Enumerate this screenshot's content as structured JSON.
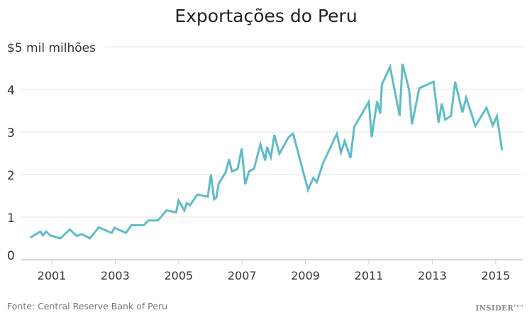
{
  "chart_data": {
    "type": "line",
    "title": "Exportações do Peru",
    "ylabel": "$5 mil milhões",
    "xlabel": "",
    "source": "Fonte: Central Reserve Bank of Peru",
    "logo": "INSIDER PRO",
    "line_color": "#5fbcc6",
    "grid": true,
    "xlim": [
      2000.0,
      2015.6
    ],
    "ylim": [
      0,
      5
    ],
    "x_ticks": [
      2001,
      2003,
      2005,
      2007,
      2009,
      2011,
      2013,
      2015
    ],
    "x_tick_labels": [
      "2001",
      "2003",
      "2005",
      "2007",
      "2009",
      "2011",
      "2013",
      "2015"
    ],
    "y_ticks": [
      0,
      1,
      2,
      3,
      4,
      5
    ],
    "y_tick_labels": [
      "0",
      "1",
      "2",
      "3",
      "4",
      "$5 mil milhões"
    ],
    "series": [
      {
        "x": [
          2000.32,
          2000.64,
          2000.72,
          2000.82,
          2000.95,
          2001.27,
          2001.57,
          2001.78,
          2001.96,
          2002.2,
          2002.48,
          2002.89,
          2002.98,
          2003.34,
          2003.51,
          2003.91,
          2004.04,
          2004.35,
          2004.62,
          2004.92,
          2005.0,
          2005.18,
          2005.26,
          2005.36,
          2005.59,
          2005.92,
          2006.02,
          2006.12,
          2006.19,
          2006.26,
          2006.49,
          2006.59,
          2006.68,
          2006.86,
          2006.99,
          2007.1,
          2007.22,
          2007.38,
          2007.58,
          2007.73,
          2007.79,
          2007.91,
          2008.02,
          2008.18,
          2008.47,
          2008.61,
          2009.08,
          2009.25,
          2009.36,
          2009.55,
          2009.99,
          2010.12,
          2010.24,
          2010.42,
          2010.54,
          2011.0,
          2011.09,
          2011.26,
          2011.36,
          2011.41,
          2011.67,
          2011.97,
          2012.06,
          2012.27,
          2012.36,
          2012.59,
          2013.04,
          2013.2,
          2013.3,
          2013.41,
          2013.59,
          2013.72,
          2013.95,
          2014.07,
          2014.36,
          2014.71,
          2014.91,
          2015.04,
          2015.2
        ],
        "y": [
          0.52,
          0.66,
          0.57,
          0.66,
          0.57,
          0.5,
          0.71,
          0.56,
          0.6,
          0.5,
          0.76,
          0.63,
          0.75,
          0.63,
          0.81,
          0.81,
          0.92,
          0.92,
          1.16,
          1.11,
          1.39,
          1.16,
          1.33,
          1.28,
          1.53,
          1.48,
          2.0,
          1.42,
          1.46,
          1.78,
          2.06,
          2.36,
          2.07,
          2.13,
          2.61,
          1.77,
          2.07,
          2.14,
          2.71,
          2.33,
          2.65,
          2.41,
          2.93,
          2.49,
          2.88,
          2.96,
          1.64,
          1.92,
          1.82,
          2.26,
          2.96,
          2.52,
          2.79,
          2.39,
          3.12,
          3.71,
          2.88,
          3.72,
          3.43,
          4.11,
          4.53,
          3.38,
          4.6,
          3.99,
          3.18,
          4.03,
          4.18,
          3.22,
          3.67,
          3.29,
          3.38,
          4.18,
          3.46,
          3.81,
          3.14,
          3.57,
          3.15,
          3.37,
          2.57
        ]
      }
    ]
  }
}
